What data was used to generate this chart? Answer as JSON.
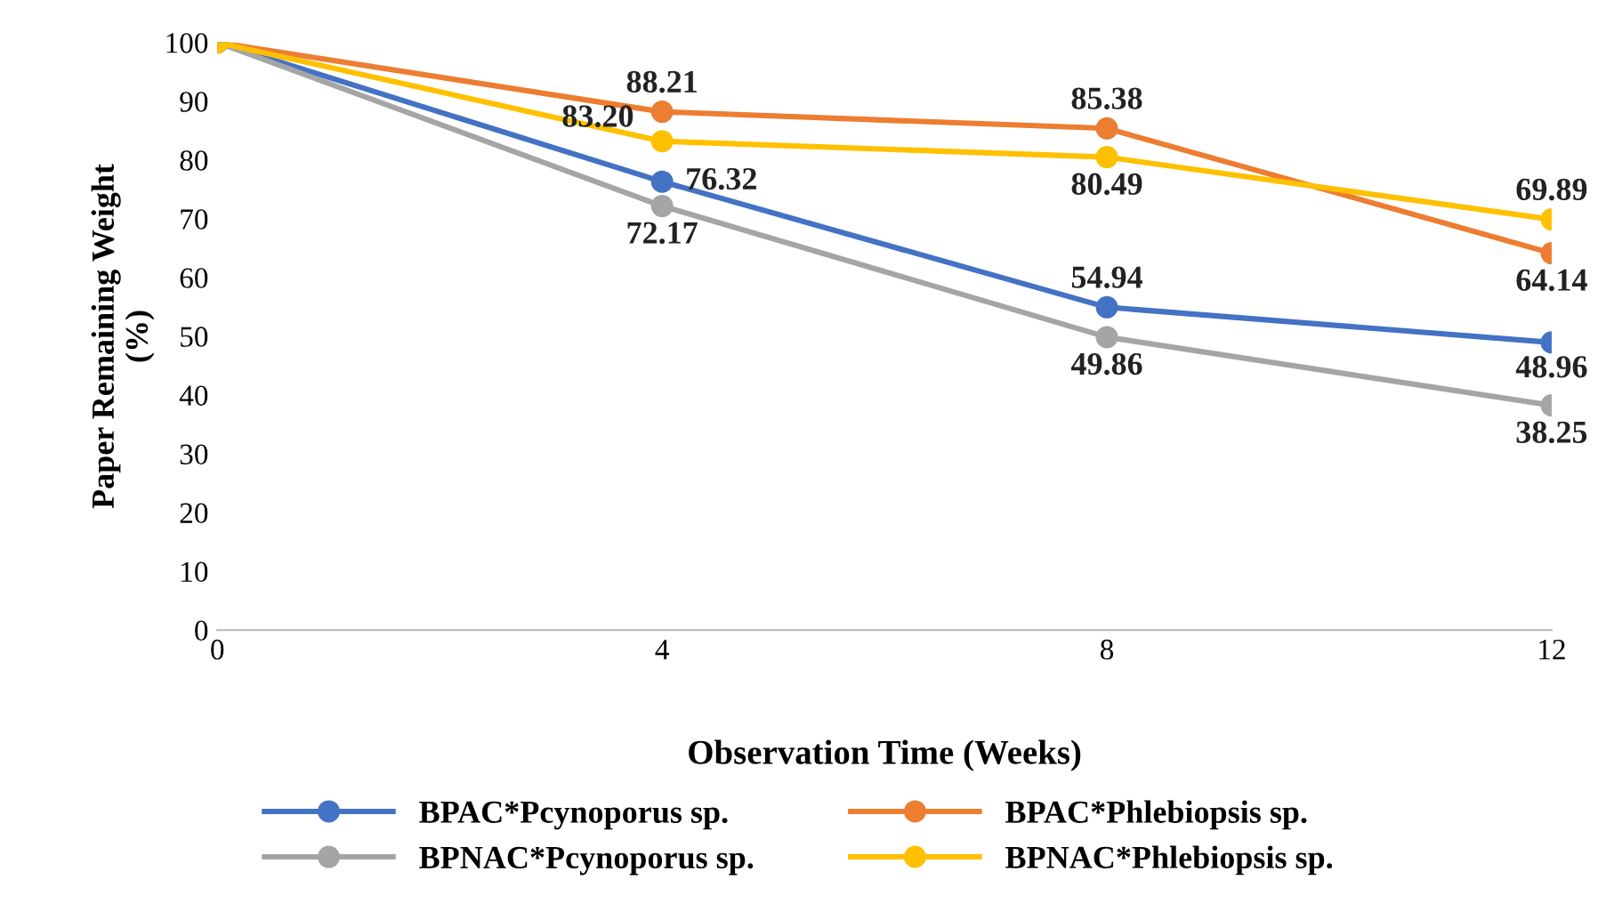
{
  "chart_data": {
    "type": "line",
    "xlabel": "Observation Time (Weeks)",
    "ylabel": "Paper Remaining Weight\n(%)",
    "x": [
      0,
      4,
      8,
      12
    ],
    "xlim": [
      0,
      12
    ],
    "xticks": [
      0,
      4,
      8,
      12
    ],
    "ylim": [
      0,
      100
    ],
    "yticks": [
      0,
      10,
      20,
      30,
      40,
      50,
      60,
      70,
      80,
      90,
      100
    ],
    "grid": false,
    "legend": "bottom",
    "marker": "circle",
    "line_style": "solid",
    "series": [
      {
        "name": "BPAC*Pcynoporus sp.",
        "color": "#4472c4",
        "values": [
          100,
          76.32,
          54.94,
          48.96
        ],
        "value_labels": [
          null,
          "76.32",
          "54.94",
          "48.96"
        ]
      },
      {
        "name": "BPAC*Phlebiopsis sp.",
        "color": "#ed7d31",
        "values": [
          100,
          88.21,
          85.38,
          64.14
        ],
        "value_labels": [
          null,
          "88.21",
          "85.38",
          "64.14"
        ]
      },
      {
        "name": "BPNAC*Pcynoporus sp.",
        "color": "#a5a5a5",
        "values": [
          100,
          72.17,
          49.86,
          38.25
        ],
        "value_labels": [
          null,
          "72.17",
          "49.86",
          "38.25"
        ]
      },
      {
        "name": "BPNAC*Phlebiopsis sp.",
        "color": "#ffc000",
        "values": [
          100,
          83.2,
          80.49,
          69.89
        ],
        "value_labels": [
          null,
          "83.20",
          "80.49",
          "69.89"
        ]
      }
    ]
  }
}
